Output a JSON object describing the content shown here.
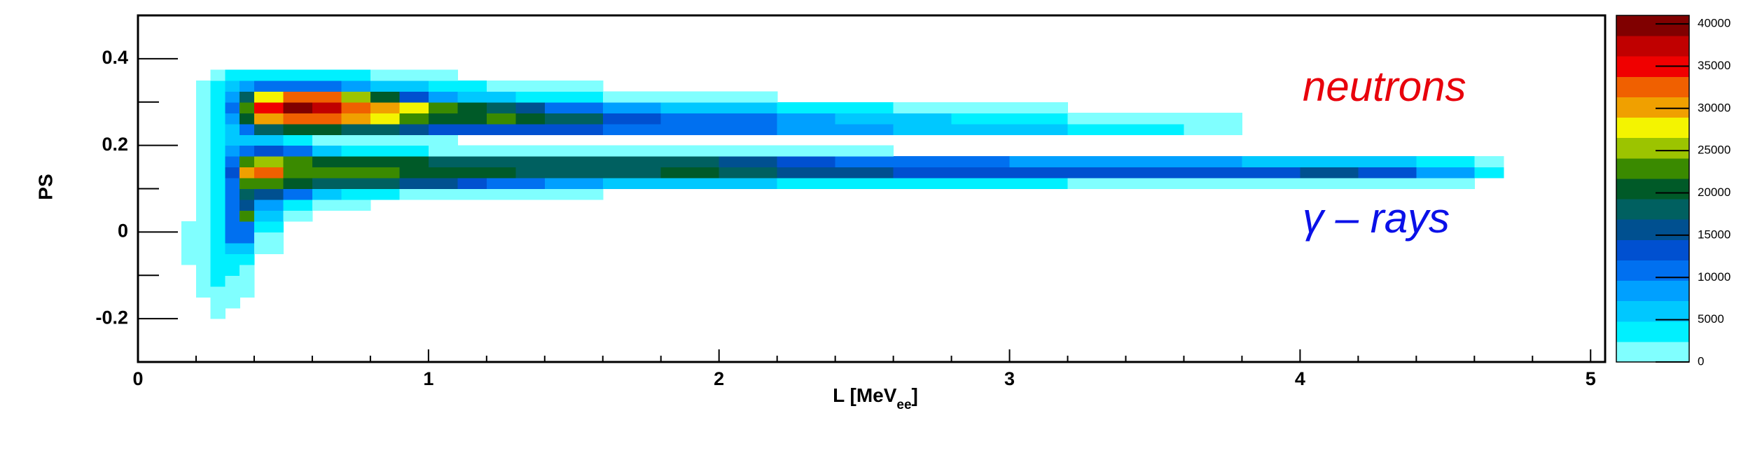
{
  "chart_data": {
    "type": "contour",
    "xlabel": {
      "text": "L [MeV",
      "subscript": "ee",
      "suffix": "]"
    },
    "ylabel": "PS",
    "annotations": [
      {
        "text": "neutrons",
        "color": "#e8000b"
      },
      {
        "text": "γ – rays",
        "color": "#0a10e8"
      }
    ],
    "xlim": [
      0,
      5.05
    ],
    "xticks": [
      0,
      1,
      2,
      3,
      4,
      5
    ],
    "xminorticks": [
      0.2,
      0.4,
      0.6,
      0.8,
      1.2,
      1.4,
      1.6,
      1.8,
      2.2,
      2.4,
      2.6,
      2.8,
      3.2,
      3.4,
      3.6,
      3.8,
      4.2,
      4.4,
      4.6,
      4.8
    ],
    "ylim": [
      -0.3,
      0.5
    ],
    "yticks": [
      -0.2,
      0,
      0.2,
      0.4
    ],
    "yminorticks": [
      -0.1,
      0.1,
      0.3
    ],
    "zlim": [
      0,
      41000
    ],
    "zticks": [
      0,
      5000,
      10000,
      15000,
      20000,
      25000,
      30000,
      35000,
      40000
    ],
    "palette": [
      "#80ffff",
      "#00f0ff",
      "#00c8ff",
      "#00a0ff",
      "#0070f0",
      "#0050d0",
      "#005090",
      "#006060",
      "#005a28",
      "#3a8a00",
      "#9cc400",
      "#f4f400",
      "#f0a000",
      "#f06000",
      "#f00000",
      "#c00000",
      "#800000"
    ],
    "xbins": [
      0.15,
      0.2,
      0.25,
      0.3,
      0.35,
      0.4,
      0.5,
      0.6,
      0.7,
      0.8,
      0.9,
      1.0,
      1.1,
      1.2,
      1.3,
      1.4,
      1.6,
      1.8,
      2.0,
      2.2,
      2.4,
      2.6,
      2.8,
      3.0,
      3.2,
      3.4,
      3.6,
      3.8,
      4.0,
      4.2,
      4.4,
      4.6,
      4.7
    ],
    "ybins": [
      -0.2,
      -0.175,
      -0.15,
      -0.125,
      -0.1,
      -0.075,
      -0.05,
      -0.025,
      0,
      0.025,
      0.05,
      0.075,
      0.1,
      0.125,
      0.15,
      0.175,
      0.2,
      0.225,
      0.25,
      0.275,
      0.3,
      0.325,
      0.35,
      0.375,
      0.4
    ],
    "z": [
      [
        0,
        0,
        1000,
        0,
        0,
        0,
        0,
        0,
        0,
        0,
        0,
        0,
        0,
        0,
        0,
        0,
        0,
        0,
        0,
        0,
        0,
        0,
        0,
        0,
        0,
        0,
        0,
        0,
        0,
        0,
        0,
        0
      ],
      [
        0,
        0,
        2000,
        1000,
        0,
        0,
        0,
        0,
        0,
        0,
        0,
        0,
        0,
        0,
        0,
        0,
        0,
        0,
        0,
        0,
        0,
        0,
        0,
        0,
        0,
        0,
        0,
        0,
        0,
        0,
        0,
        0
      ],
      [
        0,
        1000,
        2000,
        2000,
        1000,
        0,
        0,
        0,
        0,
        0,
        0,
        0,
        0,
        0,
        0,
        0,
        0,
        0,
        0,
        0,
        0,
        0,
        0,
        0,
        0,
        0,
        0,
        0,
        0,
        0,
        0,
        0
      ],
      [
        0,
        1000,
        3000,
        2000,
        1000,
        0,
        0,
        0,
        0,
        0,
        0,
        0,
        0,
        0,
        0,
        0,
        0,
        0,
        0,
        0,
        0,
        0,
        0,
        0,
        0,
        0,
        0,
        0,
        0,
        0,
        0,
        0
      ],
      [
        0,
        2000,
        3000,
        3000,
        2000,
        0,
        0,
        0,
        0,
        0,
        0,
        0,
        0,
        0,
        0,
        0,
        0,
        0,
        0,
        0,
        0,
        0,
        0,
        0,
        0,
        0,
        0,
        0,
        0,
        0,
        0,
        0
      ],
      [
        1000,
        2000,
        3000,
        4000,
        3000,
        0,
        0,
        0,
        0,
        0,
        0,
        0,
        0,
        0,
        0,
        0,
        0,
        0,
        0,
        0,
        0,
        0,
        0,
        0,
        0,
        0,
        0,
        0,
        0,
        0,
        0,
        0
      ],
      [
        1000,
        2000,
        4000,
        6000,
        5000,
        1000,
        0,
        0,
        0,
        0,
        0,
        0,
        0,
        0,
        0,
        0,
        0,
        0,
        0,
        0,
        0,
        0,
        0,
        0,
        0,
        0,
        0,
        0,
        0,
        0,
        0,
        0
      ],
      [
        1000,
        2000,
        4000,
        12000,
        10000,
        2000,
        0,
        0,
        0,
        0,
        0,
        0,
        0,
        0,
        0,
        0,
        0,
        0,
        0,
        0,
        0,
        0,
        0,
        0,
        0,
        0,
        0,
        0,
        0,
        0,
        0,
        0
      ],
      [
        1000,
        2000,
        4000,
        10000,
        12000,
        3000,
        0,
        0,
        0,
        0,
        0,
        0,
        0,
        0,
        0,
        0,
        0,
        0,
        0,
        0,
        0,
        0,
        0,
        0,
        0,
        0,
        0,
        0,
        0,
        0,
        0,
        0
      ],
      [
        0,
        2000,
        4000,
        12000,
        22000,
        5000,
        1000,
        0,
        0,
        0,
        0,
        0,
        0,
        0,
        0,
        0,
        0,
        0,
        0,
        0,
        0,
        0,
        0,
        0,
        0,
        0,
        0,
        0,
        0,
        0,
        0,
        0
      ],
      [
        0,
        2000,
        4000,
        10000,
        16000,
        8000,
        3000,
        2000,
        1000,
        0,
        0,
        0,
        0,
        0,
        0,
        0,
        0,
        0,
        0,
        0,
        0,
        0,
        0,
        0,
        0,
        0,
        0,
        0,
        0,
        0,
        0,
        0
      ],
      [
        0,
        2000,
        4000,
        10000,
        18000,
        16000,
        10000,
        6000,
        4000,
        3000,
        2000,
        2000,
        1000,
        1000,
        1000,
        1000,
        0,
        0,
        0,
        0,
        0,
        0,
        0,
        0,
        0,
        0,
        0,
        0,
        0,
        0,
        0,
        0
      ],
      [
        0,
        2000,
        4000,
        12000,
        22000,
        24000,
        20000,
        19000,
        18000,
        17000,
        16000,
        15000,
        14000,
        12000,
        10000,
        8000,
        7000,
        6000,
        5000,
        4000,
        4000,
        3000,
        3000,
        3000,
        2000,
        2000,
        2000,
        2000,
        2000,
        1000,
        1000,
        0
      ],
      [
        0,
        2000,
        4000,
        14000,
        30000,
        33000,
        24000,
        22000,
        22000,
        22000,
        21000,
        20000,
        20000,
        20000,
        19000,
        19000,
        19000,
        20000,
        17000,
        16000,
        15000,
        14000,
        14000,
        14000,
        14000,
        14000,
        14000,
        14000,
        15000,
        13000,
        8000,
        3000
      ],
      [
        0,
        2000,
        4000,
        10000,
        24000,
        26000,
        22000,
        20000,
        20000,
        20000,
        20000,
        19000,
        19000,
        18000,
        18000,
        18000,
        18000,
        18000,
        16000,
        14000,
        12000,
        11000,
        10000,
        9000,
        9000,
        8000,
        8000,
        7000,
        7000,
        5000,
        3000,
        1000
      ],
      [
        0,
        2000,
        4000,
        8000,
        12000,
        14000,
        10000,
        6000,
        4000,
        3000,
        3000,
        2000,
        2000,
        2000,
        2000,
        2000,
        1000,
        1000,
        1000,
        1000,
        1000,
        0,
        0,
        0,
        0,
        0,
        0,
        0,
        0,
        0,
        0,
        0
      ],
      [
        0,
        2000,
        4000,
        6000,
        6000,
        5000,
        3000,
        2000,
        1000,
        1000,
        1000,
        1000,
        0,
        0,
        0,
        0,
        0,
        0,
        0,
        0,
        0,
        0,
        0,
        0,
        0,
        0,
        0,
        0,
        0,
        0,
        0,
        0
      ],
      [
        0,
        2000,
        4000,
        6000,
        12000,
        18000,
        20000,
        20000,
        18000,
        17000,
        15000,
        14000,
        14000,
        14000,
        14000,
        13000,
        12000,
        11000,
        10000,
        9000,
        8000,
        7000,
        6000,
        5000,
        4000,
        3000,
        2000,
        0,
        0,
        0,
        0,
        0
      ],
      [
        0,
        2000,
        4000,
        8000,
        20000,
        30000,
        33000,
        32000,
        30000,
        28000,
        24000,
        20000,
        21000,
        22000,
        20000,
        17000,
        14000,
        12000,
        10000,
        9000,
        7000,
        6000,
        4000,
        3000,
        2000,
        2000,
        1000,
        0,
        0,
        0,
        0,
        0
      ],
      [
        0,
        2000,
        4000,
        10000,
        24000,
        36000,
        40000,
        37000,
        32000,
        30000,
        28000,
        22000,
        20000,
        18000,
        15000,
        12000,
        9000,
        7000,
        5000,
        4000,
        3000,
        2000,
        1000,
        1000,
        0,
        0,
        0,
        0,
        0,
        0,
        0,
        0
      ],
      [
        0,
        2000,
        4000,
        8000,
        18000,
        28000,
        33000,
        32000,
        26000,
        20000,
        14000,
        9000,
        7000,
        5000,
        4000,
        3000,
        2000,
        1000,
        1000,
        0,
        0,
        0,
        0,
        0,
        0,
        0,
        0,
        0,
        0,
        0,
        0,
        0
      ],
      [
        0,
        1000,
        3000,
        5000,
        8000,
        12000,
        12000,
        10000,
        8000,
        6000,
        5000,
        4000,
        3000,
        2000,
        2000,
        1000,
        0,
        0,
        0,
        0,
        0,
        0,
        0,
        0,
        0,
        0,
        0,
        0,
        0,
        0,
        0,
        0
      ],
      [
        0,
        0,
        2000,
        3000,
        3000,
        4000,
        4000,
        3000,
        3000,
        2000,
        2000,
        1000,
        0,
        0,
        0,
        0,
        0,
        0,
        0,
        0,
        0,
        0,
        0,
        0,
        0,
        0,
        0,
        0,
        0,
        0,
        0,
        0
      ],
      [
        0,
        0,
        0,
        0,
        0,
        0,
        0,
        0,
        0,
        0,
        0,
        0,
        0,
        0,
        0,
        0,
        0,
        0,
        0,
        0,
        0,
        0,
        0,
        0,
        0,
        0,
        0,
        0,
        0,
        0,
        0,
        0
      ]
    ]
  }
}
